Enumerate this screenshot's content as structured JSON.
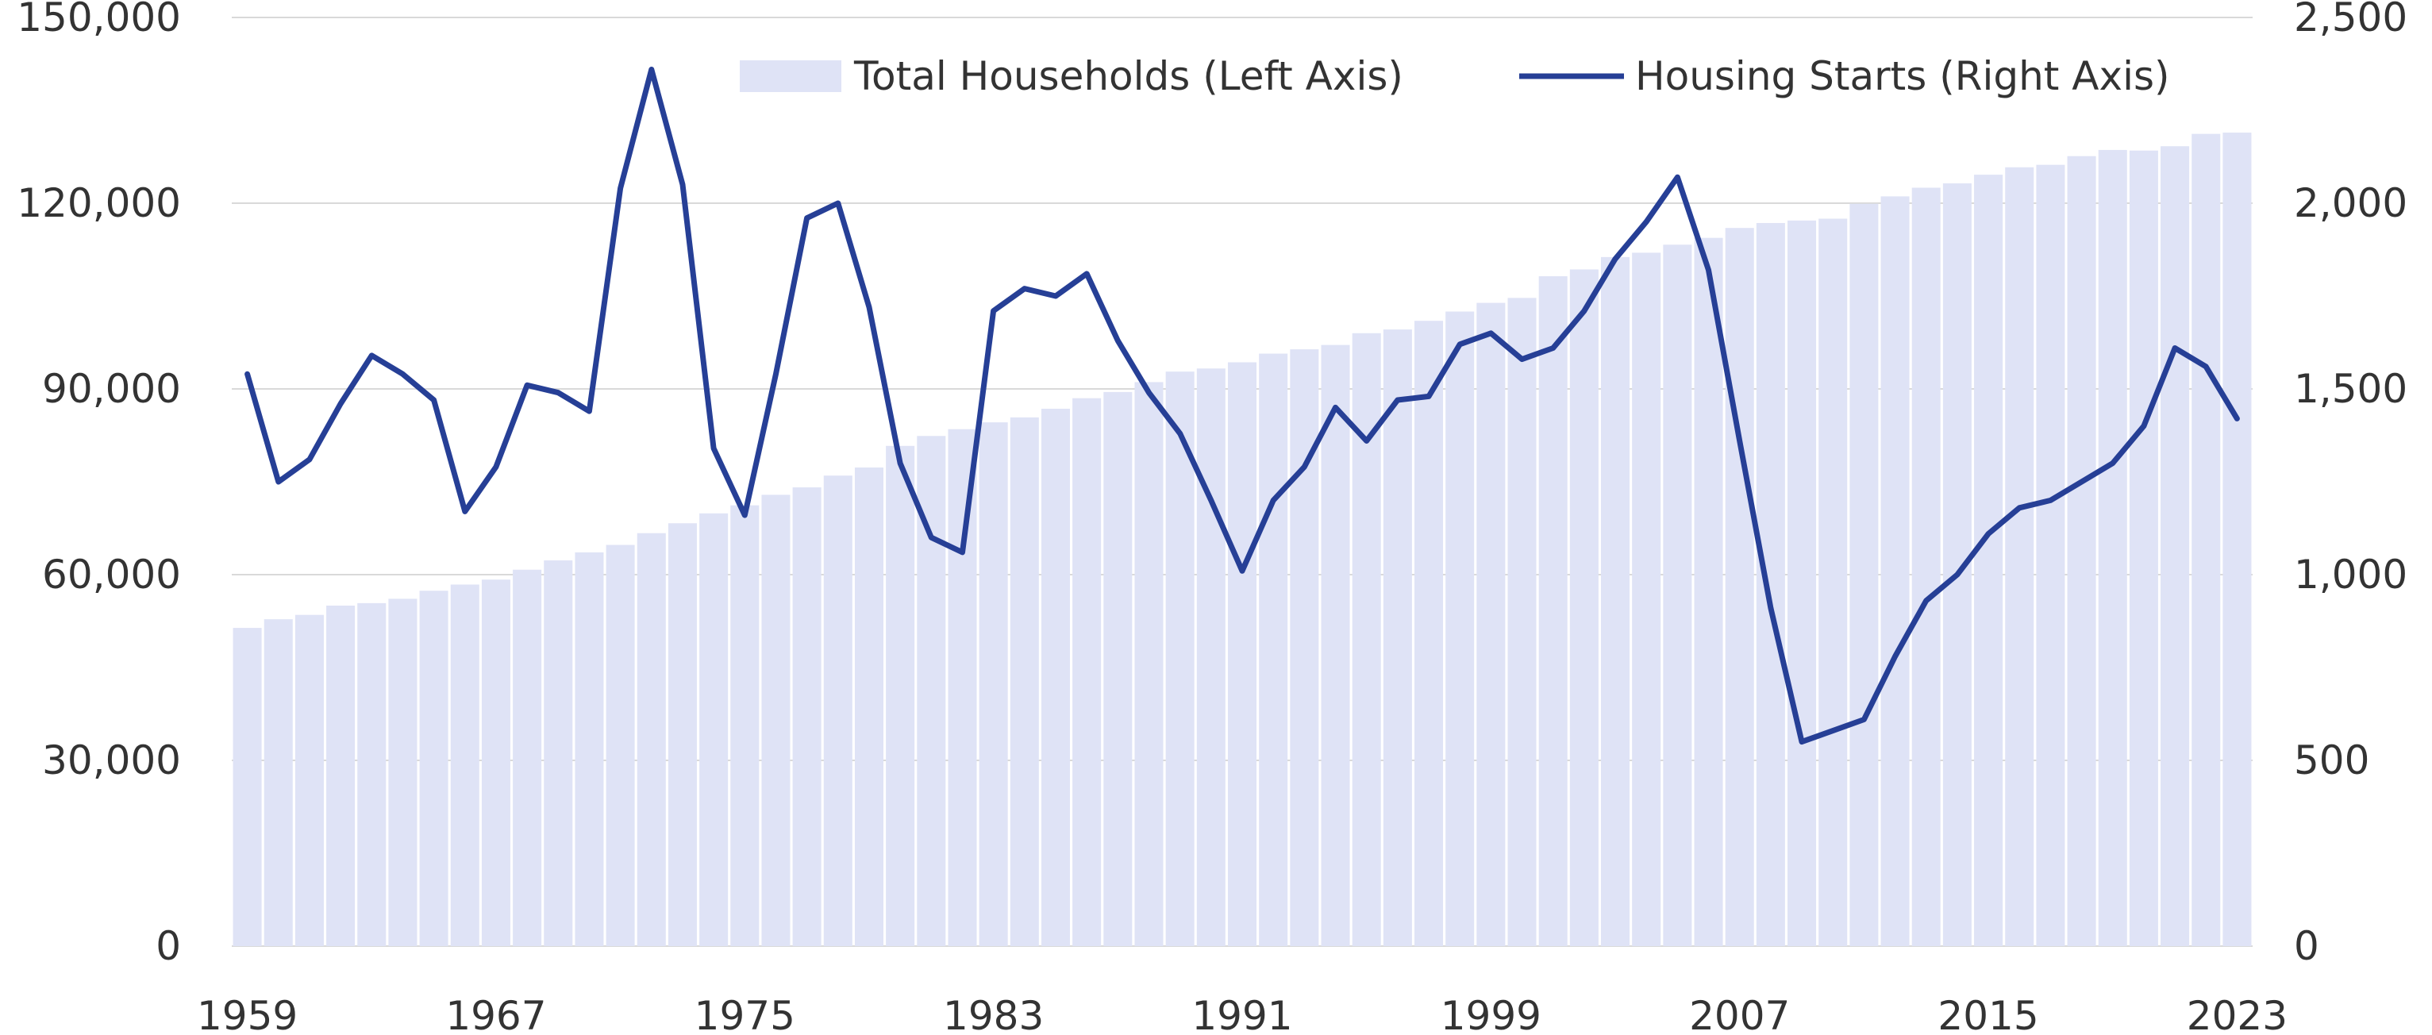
{
  "chart_data": {
    "type": "bar+line",
    "title": "",
    "xlabel": "",
    "x": [
      1959,
      1960,
      1961,
      1962,
      1963,
      1964,
      1965,
      1966,
      1967,
      1968,
      1969,
      1970,
      1971,
      1972,
      1973,
      1974,
      1975,
      1976,
      1977,
      1978,
      1979,
      1980,
      1981,
      1982,
      1983,
      1984,
      1985,
      1986,
      1987,
      1988,
      1989,
      1990,
      1991,
      1992,
      1993,
      1994,
      1995,
      1996,
      1997,
      1998,
      1999,
      2000,
      2001,
      2002,
      2003,
      2004,
      2005,
      2006,
      2007,
      2008,
      2009,
      2010,
      2011,
      2012,
      2013,
      2014,
      2015,
      2016,
      2017,
      2018,
      2019,
      2020,
      2021,
      2022,
      2023
    ],
    "x_tick_labels": [
      "1959",
      "1967",
      "1975",
      "1983",
      "1991",
      "1999",
      "2007",
      "2015",
      "2023"
    ],
    "left_axis": {
      "ylim": [
        0,
        150000
      ],
      "tick_labels": [
        "0",
        "30,000",
        "60,000",
        "90,000",
        "120,000",
        "150,000"
      ]
    },
    "right_axis": {
      "ylim": [
        0,
        2500
      ],
      "tick_labels": [
        "0",
        "500",
        "1,000",
        "1,500",
        "2,000",
        "2,500"
      ]
    },
    "grid": true,
    "legend_position": "top-right",
    "series": [
      {
        "name": "Total Households (Left Axis)",
        "type": "bar",
        "axis": "left",
        "color": "#dfe3f6",
        "values": [
          51400,
          52800,
          53500,
          55000,
          55400,
          56100,
          57400,
          58400,
          59200,
          60800,
          62300,
          63600,
          64800,
          66700,
          68300,
          69900,
          71200,
          72900,
          74100,
          76000,
          77300,
          80800,
          82400,
          83500,
          84600,
          85400,
          86800,
          88500,
          89500,
          91100,
          92800,
          93300,
          94300,
          95700,
          96400,
          97100,
          99000,
          99600,
          101000,
          102500,
          103900,
          104700,
          108200,
          109300,
          111300,
          112000,
          113300,
          114400,
          116000,
          116800,
          117200,
          117500,
          119900,
          121100,
          122500,
          123200,
          124600,
          125800,
          126200,
          127600,
          128600,
          128500,
          129200,
          131200,
          131400
        ]
      },
      {
        "name": "Housing Starts (Right Axis)",
        "type": "line",
        "axis": "right",
        "color": "#263f96",
        "values": [
          1540,
          1250,
          1310,
          1460,
          1590,
          1540,
          1470,
          1170,
          1290,
          1510,
          1490,
          1440,
          2040,
          2360,
          2050,
          1340,
          1160,
          1540,
          1960,
          2000,
          1720,
          1300,
          1100,
          1060,
          1710,
          1770,
          1750,
          1810,
          1630,
          1490,
          1380,
          1200,
          1010,
          1200,
          1290,
          1450,
          1360,
          1470,
          1480,
          1620,
          1650,
          1580,
          1610,
          1710,
          1850,
          1950,
          2070,
          1820,
          1360,
          910,
          550,
          580,
          610,
          780,
          930,
          1000,
          1110,
          1180,
          1200,
          1250,
          1300,
          1400,
          1610,
          1560,
          1420
        ]
      }
    ]
  }
}
